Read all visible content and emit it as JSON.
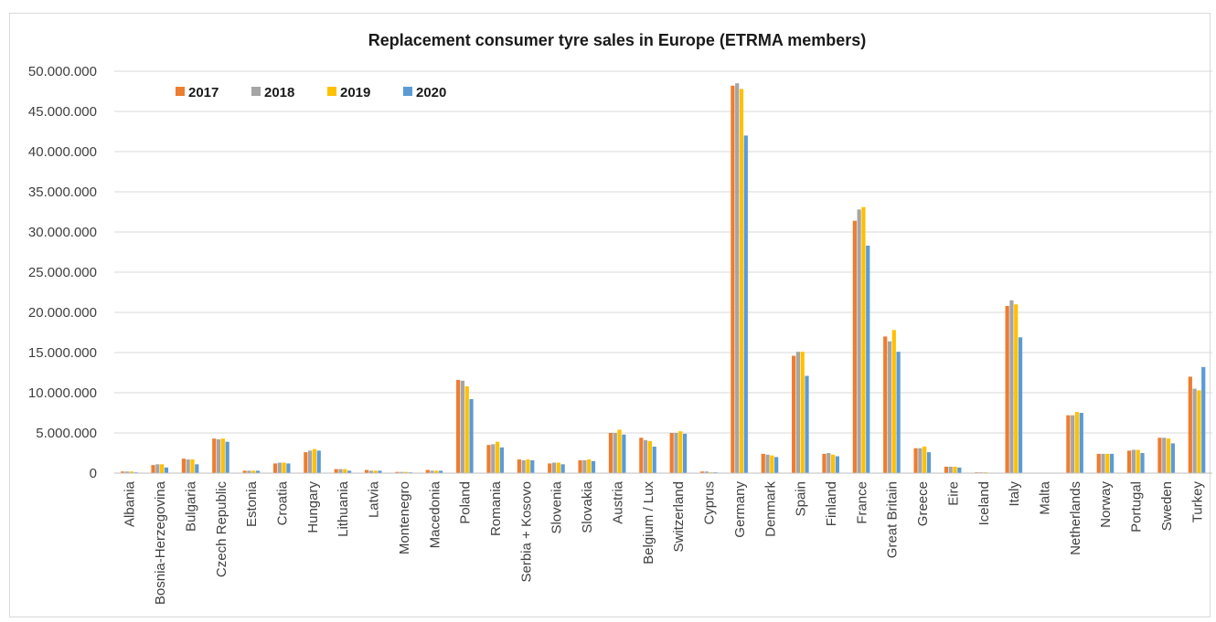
{
  "chart_data": {
    "type": "bar",
    "title": "Replacement consumer tyre sales in Europe (ETRMA members)",
    "xlabel": "",
    "ylabel": "",
    "ylim": [
      0,
      50000000
    ],
    "y_ticks": [
      "0",
      "5.000.000",
      "10.000.000",
      "15.000.000",
      "20.000.000",
      "25.000.000",
      "30.000.000",
      "35.000.000",
      "40.000.000",
      "45.000.000",
      "50.000.000"
    ],
    "grid": true,
    "legend_position": "top-left",
    "categories": [
      "Albania",
      "Bosnia-Herzegovina",
      "Bulgaria",
      "Czech Republic",
      "Estonia",
      "Croatia",
      "Hungary",
      "Lithuania",
      "Latvia",
      "Montenegro",
      "Macedonia",
      "Poland",
      "Romania",
      "Serbia + Kosovo",
      "Slovenia",
      "Slovakia",
      "Austria",
      "Belgium / Lux",
      "Switzerland",
      "Cyprus",
      "Germany",
      "Denmark",
      "Spain",
      "Finland",
      "France",
      "Great Britain",
      "Greece",
      "Eire",
      "Iceland",
      "Italy",
      "Malta",
      "Netherlands",
      "Norway",
      "Portugal",
      "Sweden",
      "Turkey"
    ],
    "series": [
      {
        "name": "2017",
        "color": "#ed7d31",
        "values": [
          200000,
          1000000,
          1800000,
          4300000,
          300000,
          1200000,
          2600000,
          500000,
          400000,
          150000,
          400000,
          11600000,
          3500000,
          1700000,
          1200000,
          1600000,
          5000000,
          4400000,
          5000000,
          200000,
          48200000,
          2400000,
          14600000,
          2400000,
          31400000,
          17000000,
          3100000,
          800000,
          100000,
          20800000,
          50000,
          7200000,
          2400000,
          2800000,
          4400000,
          12000000
        ]
      },
      {
        "name": "2018",
        "color": "#a5a5a5",
        "values": [
          200000,
          1100000,
          1700000,
          4200000,
          300000,
          1300000,
          2800000,
          500000,
          300000,
          150000,
          300000,
          11500000,
          3600000,
          1600000,
          1300000,
          1600000,
          5000000,
          4100000,
          5000000,
          200000,
          48500000,
          2300000,
          15100000,
          2500000,
          32800000,
          16400000,
          3100000,
          800000,
          100000,
          21500000,
          50000,
          7200000,
          2400000,
          2900000,
          4400000,
          10500000
        ]
      },
      {
        "name": "2019",
        "color": "#ffc000",
        "values": [
          200000,
          1100000,
          1700000,
          4300000,
          300000,
          1300000,
          3000000,
          500000,
          300000,
          150000,
          300000,
          10800000,
          3900000,
          1700000,
          1300000,
          1700000,
          5400000,
          4000000,
          5200000,
          100000,
          47800000,
          2200000,
          15100000,
          2300000,
          33100000,
          17800000,
          3300000,
          800000,
          100000,
          21000000,
          50000,
          7600000,
          2400000,
          2900000,
          4300000,
          10300000
        ]
      },
      {
        "name": "2020",
        "color": "#5b9bd5",
        "values": [
          100000,
          700000,
          1100000,
          3900000,
          300000,
          1200000,
          2800000,
          300000,
          300000,
          100000,
          300000,
          9200000,
          3200000,
          1600000,
          1100000,
          1500000,
          4800000,
          3300000,
          4900000,
          100000,
          42000000,
          2000000,
          12100000,
          2100000,
          28300000,
          15100000,
          2600000,
          700000,
          0,
          16900000,
          0,
          7500000,
          2400000,
          2500000,
          3700000,
          13200000
        ]
      }
    ]
  }
}
